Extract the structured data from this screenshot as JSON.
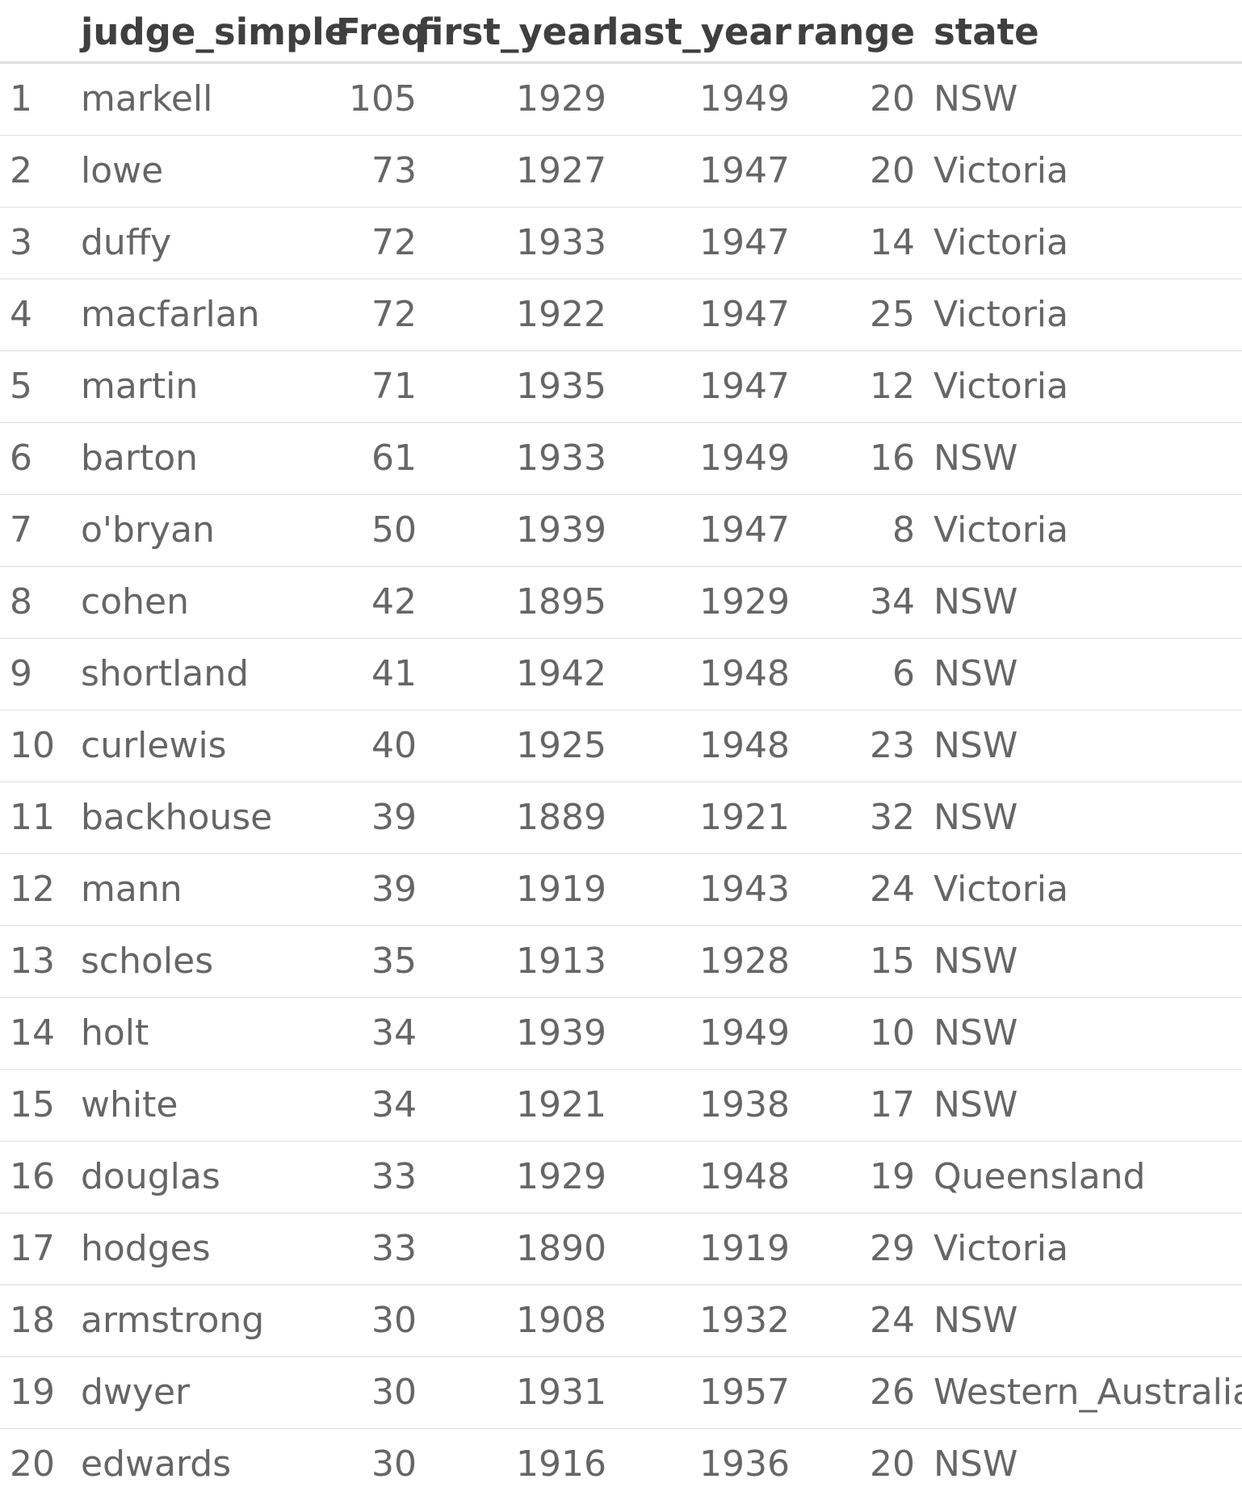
{
  "table": {
    "headers": [
      "",
      "judge_simple",
      "Freq",
      "first_year",
      "last_year",
      "range",
      "state"
    ],
    "rows": [
      [
        "1",
        "markell",
        "105",
        "1929",
        "1949",
        "20",
        "NSW"
      ],
      [
        "2",
        "lowe",
        "73",
        "1927",
        "1947",
        "20",
        "Victoria"
      ],
      [
        "3",
        "duffy",
        "72",
        "1933",
        "1947",
        "14",
        "Victoria"
      ],
      [
        "4",
        "macfarlan",
        "72",
        "1922",
        "1947",
        "25",
        "Victoria"
      ],
      [
        "5",
        "martin",
        "71",
        "1935",
        "1947",
        "12",
        "Victoria"
      ],
      [
        "6",
        "barton",
        "61",
        "1933",
        "1949",
        "16",
        "NSW"
      ],
      [
        "7",
        "o'bryan",
        "50",
        "1939",
        "1947",
        "8",
        "Victoria"
      ],
      [
        "8",
        "cohen",
        "42",
        "1895",
        "1929",
        "34",
        "NSW"
      ],
      [
        "9",
        "shortland",
        "41",
        "1942",
        "1948",
        "6",
        "NSW"
      ],
      [
        "10",
        "curlewis",
        "40",
        "1925",
        "1948",
        "23",
        "NSW"
      ],
      [
        "11",
        "backhouse",
        "39",
        "1889",
        "1921",
        "32",
        "NSW"
      ],
      [
        "12",
        "mann",
        "39",
        "1919",
        "1943",
        "24",
        "Victoria"
      ],
      [
        "13",
        "scholes",
        "35",
        "1913",
        "1928",
        "15",
        "NSW"
      ],
      [
        "14",
        "holt",
        "34",
        "1939",
        "1949",
        "10",
        "NSW"
      ],
      [
        "15",
        "white",
        "34",
        "1921",
        "1938",
        "17",
        "NSW"
      ],
      [
        "16",
        "douglas",
        "33",
        "1929",
        "1948",
        "19",
        "Queensland"
      ],
      [
        "17",
        "hodges",
        "33",
        "1890",
        "1919",
        "29",
        "Victoria"
      ],
      [
        "18",
        "armstrong",
        "30",
        "1908",
        "1932",
        "24",
        "NSW"
      ],
      [
        "19",
        "dwyer",
        "30",
        "1931",
        "1957",
        "26",
        "Western_Australia"
      ],
      [
        "20",
        "edwards",
        "30",
        "1916",
        "1936",
        "20",
        "NSW"
      ]
    ]
  }
}
